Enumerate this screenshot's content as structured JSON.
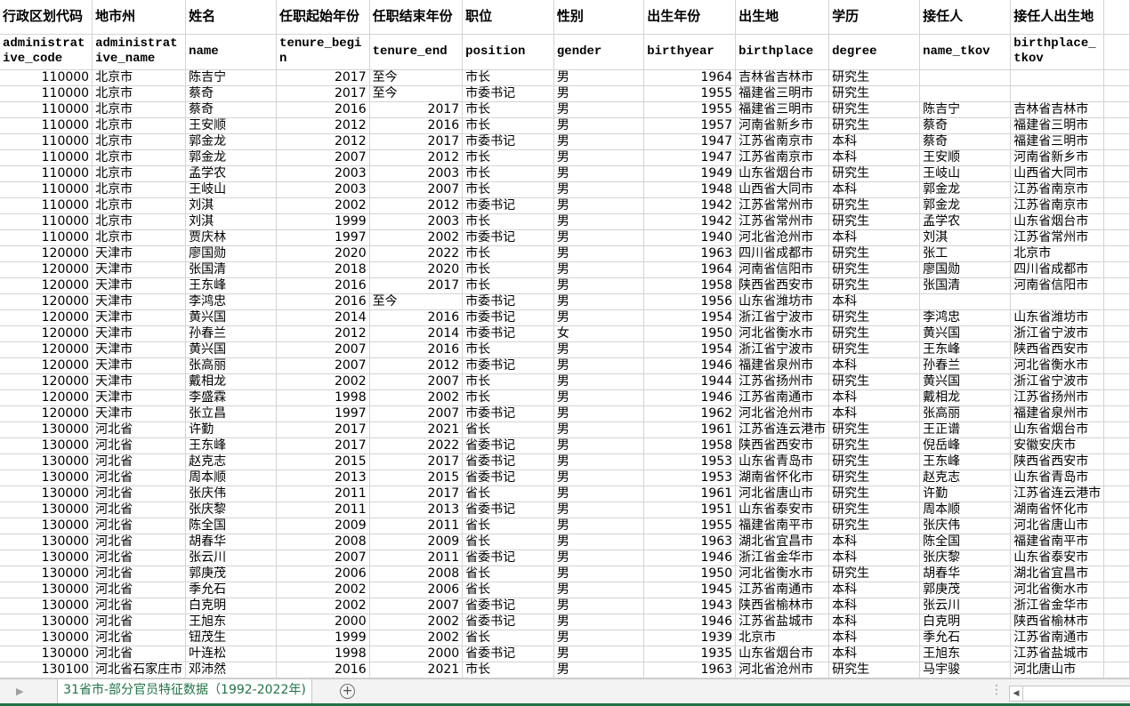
{
  "sheet": {
    "headers_cn": [
      "行政区划代码",
      "地市州",
      "姓名",
      "任职起始年份",
      "任职结束年份",
      "职位",
      "性别",
      "出生年份",
      "出生地",
      "学历",
      "接任人",
      "接任人出生地"
    ],
    "headers_en": [
      "administrative_code",
      "administrative_name",
      "name",
      "tenure_begin",
      "tenure_end",
      "position",
      "gender",
      "birthyear",
      "birthplace",
      "degree",
      "name_tkov",
      "birthplace_tkov"
    ],
    "rows": [
      [
        "110000",
        "北京市",
        "陈吉宁",
        "2017",
        "至今",
        "市长",
        "男",
        "1964",
        "吉林省吉林市",
        "研究生",
        "",
        ""
      ],
      [
        "110000",
        "北京市",
        "蔡奇",
        "2017",
        "至今",
        "市委书记",
        "男",
        "1955",
        "福建省三明市",
        "研究生",
        "",
        ""
      ],
      [
        "110000",
        "北京市",
        "蔡奇",
        "2016",
        "2017",
        "市长",
        "男",
        "1955",
        "福建省三明市",
        "研究生",
        "陈吉宁",
        "吉林省吉林市"
      ],
      [
        "110000",
        "北京市",
        "王安顺",
        "2012",
        "2016",
        "市长",
        "男",
        "1957",
        "河南省新乡市",
        "研究生",
        "蔡奇",
        "福建省三明市"
      ],
      [
        "110000",
        "北京市",
        "郭金龙",
        "2012",
        "2017",
        "市委书记",
        "男",
        "1947",
        "江苏省南京市",
        "本科",
        "蔡奇",
        "福建省三明市"
      ],
      [
        "110000",
        "北京市",
        "郭金龙",
        "2007",
        "2012",
        "市长",
        "男",
        "1947",
        "江苏省南京市",
        "本科",
        "王安顺",
        "河南省新乡市"
      ],
      [
        "110000",
        "北京市",
        "孟学农",
        "2003",
        "2003",
        "市长",
        "男",
        "1949",
        "山东省烟台市",
        "研究生",
        "王岐山",
        "山西省大同市"
      ],
      [
        "110000",
        "北京市",
        "王岐山",
        "2003",
        "2007",
        "市长",
        "男",
        "1948",
        "山西省大同市",
        "本科",
        "郭金龙",
        "江苏省南京市"
      ],
      [
        "110000",
        "北京市",
        "刘淇",
        "2002",
        "2012",
        "市委书记",
        "男",
        "1942",
        "江苏省常州市",
        "研究生",
        "郭金龙",
        "江苏省南京市"
      ],
      [
        "110000",
        "北京市",
        "刘淇",
        "1999",
        "2003",
        "市长",
        "男",
        "1942",
        "江苏省常州市",
        "研究生",
        "孟学农",
        "山东省烟台市"
      ],
      [
        "110000",
        "北京市",
        "贾庆林",
        "1997",
        "2002",
        "市委书记",
        "男",
        "1940",
        "河北省沧州市",
        "本科",
        "刘淇",
        "江苏省常州市"
      ],
      [
        "120000",
        "天津市",
        "廖国勋",
        "2020",
        "2022",
        "市长",
        "男",
        "1963",
        "四川省成都市",
        "研究生",
        "张工",
        "北京市"
      ],
      [
        "120000",
        "天津市",
        "张国清",
        "2018",
        "2020",
        "市长",
        "男",
        "1964",
        "河南省信阳市",
        "研究生",
        "廖国勋",
        "四川省成都市"
      ],
      [
        "120000",
        "天津市",
        "王东峰",
        "2016",
        "2017",
        "市长",
        "男",
        "1958",
        "陕西省西安市",
        "研究生",
        "张国清",
        "河南省信阳市"
      ],
      [
        "120000",
        "天津市",
        "李鸿忠",
        "2016",
        "至今",
        "市委书记",
        "男",
        "1956",
        "山东省潍坊市",
        "本科",
        "",
        ""
      ],
      [
        "120000",
        "天津市",
        "黄兴国",
        "2014",
        "2016",
        "市委书记",
        "男",
        "1954",
        "浙江省宁波市",
        "研究生",
        "李鸿忠",
        "山东省潍坊市"
      ],
      [
        "120000",
        "天津市",
        "孙春兰",
        "2012",
        "2014",
        "市委书记",
        "女",
        "1950",
        "河北省衡水市",
        "研究生",
        "黄兴国",
        "浙江省宁波市"
      ],
      [
        "120000",
        "天津市",
        "黄兴国",
        "2007",
        "2016",
        "市长",
        "男",
        "1954",
        "浙江省宁波市",
        "研究生",
        "王东峰",
        "陕西省西安市"
      ],
      [
        "120000",
        "天津市",
        "张高丽",
        "2007",
        "2012",
        "市委书记",
        "男",
        "1946",
        "福建省泉州市",
        "本科",
        "孙春兰",
        "河北省衡水市"
      ],
      [
        "120000",
        "天津市",
        "戴相龙",
        "2002",
        "2007",
        "市长",
        "男",
        "1944",
        "江苏省扬州市",
        "研究生",
        "黄兴国",
        "浙江省宁波市"
      ],
      [
        "120000",
        "天津市",
        "李盛霖",
        "1998",
        "2002",
        "市长",
        "男",
        "1946",
        "江苏省南通市",
        "本科",
        "戴相龙",
        "江苏省扬州市"
      ],
      [
        "120000",
        "天津市",
        "张立昌",
        "1997",
        "2007",
        "市委书记",
        "男",
        "1962",
        "河北省沧州市",
        "本科",
        "张高丽",
        "福建省泉州市"
      ],
      [
        "130000",
        "河北省",
        "许勤",
        "2017",
        "2021",
        "省长",
        "男",
        "1961",
        "江苏省连云港市",
        "研究生",
        "王正谱",
        "山东省烟台市"
      ],
      [
        "130000",
        "河北省",
        "王东峰",
        "2017",
        "2022",
        "省委书记",
        "男",
        "1958",
        "陕西省西安市",
        "研究生",
        "倪岳峰",
        "安徽安庆市"
      ],
      [
        "130000",
        "河北省",
        "赵克志",
        "2015",
        "2017",
        "省委书记",
        "男",
        "1953",
        "山东省青岛市",
        "研究生",
        "王东峰",
        "陕西省西安市"
      ],
      [
        "130000",
        "河北省",
        "周本顺",
        "2013",
        "2015",
        "省委书记",
        "男",
        "1953",
        "湖南省怀化市",
        "研究生",
        "赵克志",
        "山东省青岛市"
      ],
      [
        "130000",
        "河北省",
        "张庆伟",
        "2011",
        "2017",
        "省长",
        "男",
        "1961",
        "河北省唐山市",
        "研究生",
        "许勤",
        "江苏省连云港市"
      ],
      [
        "130000",
        "河北省",
        "张庆黎",
        "2011",
        "2013",
        "省委书记",
        "男",
        "1951",
        "山东省泰安市",
        "研究生",
        "周本顺",
        "湖南省怀化市"
      ],
      [
        "130000",
        "河北省",
        "陈全国",
        "2009",
        "2011",
        "省长",
        "男",
        "1955",
        "福建省南平市",
        "研究生",
        "张庆伟",
        "河北省唐山市"
      ],
      [
        "130000",
        "河北省",
        "胡春华",
        "2008",
        "2009",
        "省长",
        "男",
        "1963",
        "湖北省宜昌市",
        "本科",
        "陈全国",
        "福建省南平市"
      ],
      [
        "130000",
        "河北省",
        "张云川",
        "2007",
        "2011",
        "省委书记",
        "男",
        "1946",
        "浙江省金华市",
        "本科",
        "张庆黎",
        "山东省泰安市"
      ],
      [
        "130000",
        "河北省",
        "郭庚茂",
        "2006",
        "2008",
        "省长",
        "男",
        "1950",
        "河北省衡水市",
        "研究生",
        "胡春华",
        "湖北省宜昌市"
      ],
      [
        "130000",
        "河北省",
        "季允石",
        "2002",
        "2006",
        "省长",
        "男",
        "1945",
        "江苏省南通市",
        "本科",
        "郭庚茂",
        "河北省衡水市"
      ],
      [
        "130000",
        "河北省",
        "白克明",
        "2002",
        "2007",
        "省委书记",
        "男",
        "1943",
        "陕西省榆林市",
        "本科",
        "张云川",
        "浙江省金华市"
      ],
      [
        "130000",
        "河北省",
        "王旭东",
        "2000",
        "2002",
        "省委书记",
        "男",
        "1946",
        "江苏省盐城市",
        "本科",
        "白克明",
        "陕西省榆林市"
      ],
      [
        "130000",
        "河北省",
        "钮茂生",
        "1999",
        "2002",
        "省长",
        "男",
        "1939",
        "北京市",
        "本科",
        "季允石",
        "江苏省南通市"
      ],
      [
        "130000",
        "河北省",
        "叶连松",
        "1998",
        "2000",
        "省委书记",
        "男",
        "1935",
        "山东省烟台市",
        "本科",
        "王旭东",
        "江苏省盐城市"
      ],
      [
        "130100",
        "河北省石家庄市",
        "邓沛然",
        "2016",
        "2021",
        "市长",
        "男",
        "1963",
        "河北省沧州市",
        "研究生",
        "马宇骏",
        "河北唐山市"
      ]
    ]
  },
  "tabbar": {
    "active_sheet": "31省市-部分官员特征数据（1992-2022年)",
    "add_sheet_icon": "plus-circle-icon",
    "accent_color": "#217346"
  }
}
